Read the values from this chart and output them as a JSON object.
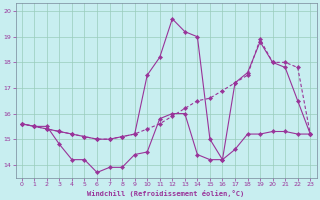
{
  "xlabel": "Windchill (Refroidissement éolien,°C)",
  "xlim": [
    -0.5,
    23.5
  ],
  "ylim": [
    13.5,
    20.3
  ],
  "xticks": [
    0,
    1,
    2,
    3,
    4,
    5,
    6,
    7,
    8,
    9,
    10,
    11,
    12,
    13,
    14,
    15,
    16,
    17,
    18,
    19,
    20,
    21,
    22,
    23
  ],
  "yticks": [
    14,
    15,
    16,
    17,
    18,
    19,
    20
  ],
  "bg_color": "#c8eef0",
  "grid_color": "#99ccbb",
  "line_color": "#993399",
  "line1_solid": {
    "x": [
      0,
      1,
      2,
      3,
      4,
      5,
      6,
      7,
      8,
      9,
      10,
      11,
      12,
      13,
      14,
      15,
      16,
      17,
      18,
      19,
      20,
      21,
      22,
      23
    ],
    "y": [
      15.6,
      15.5,
      15.5,
      14.8,
      14.2,
      14.2,
      13.7,
      13.9,
      13.9,
      14.4,
      14.5,
      15.8,
      16.0,
      16.0,
      14.4,
      14.2,
      14.2,
      14.6,
      15.2,
      15.2,
      15.3,
      15.3,
      15.2,
      15.2
    ]
  },
  "line2_dashed": {
    "x": [
      0,
      1,
      2,
      3,
      4,
      5,
      6,
      7,
      8,
      9,
      10,
      11,
      12,
      13,
      14,
      15,
      16,
      17,
      18,
      19,
      20,
      21,
      22,
      23
    ],
    "y": [
      15.6,
      15.5,
      15.4,
      15.3,
      15.2,
      15.1,
      15.0,
      15.0,
      15.1,
      15.2,
      15.4,
      15.6,
      15.9,
      16.2,
      16.5,
      16.6,
      16.9,
      17.2,
      17.5,
      18.9,
      18.0,
      18.0,
      17.8,
      15.2
    ]
  },
  "line3_solid2": {
    "x": [
      0,
      1,
      2,
      3,
      4,
      5,
      6,
      7,
      8,
      9,
      10,
      11,
      12,
      13,
      14,
      15,
      16,
      17,
      18,
      19,
      20,
      21,
      22,
      23
    ],
    "y": [
      15.6,
      15.5,
      15.4,
      15.3,
      15.2,
      15.1,
      15.0,
      15.0,
      15.1,
      15.2,
      17.5,
      18.2,
      19.7,
      19.2,
      19.0,
      15.0,
      14.2,
      17.2,
      17.6,
      18.8,
      18.0,
      17.8,
      16.5,
      15.2
    ]
  }
}
